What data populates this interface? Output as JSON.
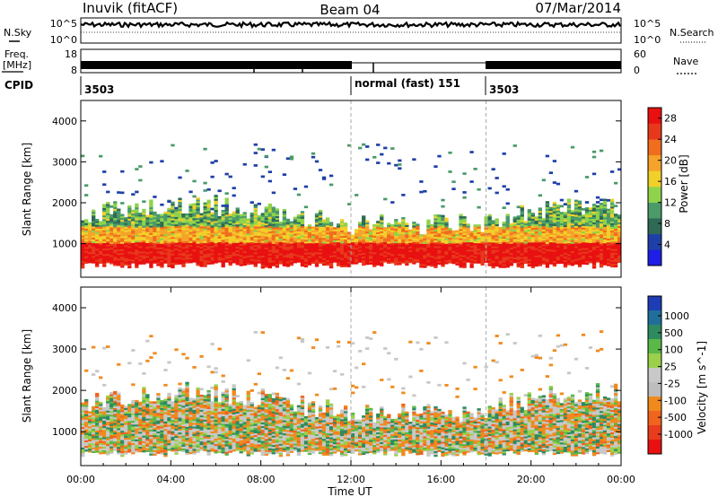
{
  "header": {
    "title_left": "Inuvik (fitACF)",
    "title_center": "Beam 04",
    "title_right": "07/Mar/2014"
  },
  "strip": {
    "nsky_label": "N.Sky",
    "nsky_tick_top": "10^5",
    "nsky_tick_bottom": "10^0",
    "nsearch_label": "N.Search",
    "nsearch_tick_top": "10^5",
    "nsearch_tick_bottom": "10^0",
    "freq_label": "Freq.",
    "freq_unit": "[MHz]",
    "freq_tick_top": "18",
    "freq_tick_bottom": "8",
    "nave_label": "Nave",
    "nave_tick_top": "60",
    "nave_tick_bottom": "0",
    "cpid_label": "CPID",
    "cpid_segments": [
      {
        "start_hour": 0,
        "end_hour": 12,
        "label": "3503"
      },
      {
        "start_hour": 12,
        "end_hour": 18,
        "label": "normal (fast) 151"
      },
      {
        "start_hour": 18,
        "end_hour": 24,
        "label": "3503"
      }
    ]
  },
  "colors": {
    "power_scale": [
      "#1e1ee6",
      "#1f3fa8",
      "#2e6a55",
      "#4a9a6a",
      "#8fd34a",
      "#f2d02a",
      "#f5a32a",
      "#f06d1e",
      "#e8381c",
      "#e81010"
    ],
    "velocity_scale": [
      "#1e3cb4",
      "#1f6f9a",
      "#2e8a60",
      "#5ab848",
      "#9ad04a",
      "#c8c8c8",
      "#bdbdbd",
      "#f08a1e",
      "#f0641e",
      "#e83c1c",
      "#e81010"
    ],
    "trace": "#000000",
    "mode_change_line": "#aaaaaa"
  },
  "chart_data": [
    {
      "type": "heatmap",
      "ylabel": "Slant Range [km]",
      "xlim_hours": [
        0,
        24
      ],
      "ylim": [
        180,
        4500
      ],
      "yticks": [
        "1000",
        "2000",
        "3000",
        "4000"
      ],
      "colorbar_label": "Power [dB]",
      "colorbar_ticks": [
        "4",
        "8",
        "12",
        "16",
        "20",
        "24",
        "28"
      ],
      "colorbar_range": [
        0,
        30
      ],
      "mode_change_hours": [
        12,
        18
      ]
    },
    {
      "type": "heatmap",
      "ylabel": "Slant Range [km]",
      "xlabel": "Time UT",
      "xlim_hours": [
        0,
        24
      ],
      "ylim": [
        180,
        4500
      ],
      "yticks": [
        "1000",
        "2000",
        "3000",
        "4000"
      ],
      "xticks": [
        "00:00",
        "04:00",
        "08:00",
        "12:00",
        "16:00",
        "20:00",
        "00:00"
      ],
      "colorbar_label": "Velocity [m s^-1]",
      "colorbar_ticks": [
        "1000",
        "500",
        "100",
        "25",
        "-25",
        "-100",
        "-500",
        "-1000"
      ],
      "mode_change_hours": [
        12,
        18
      ]
    }
  ]
}
